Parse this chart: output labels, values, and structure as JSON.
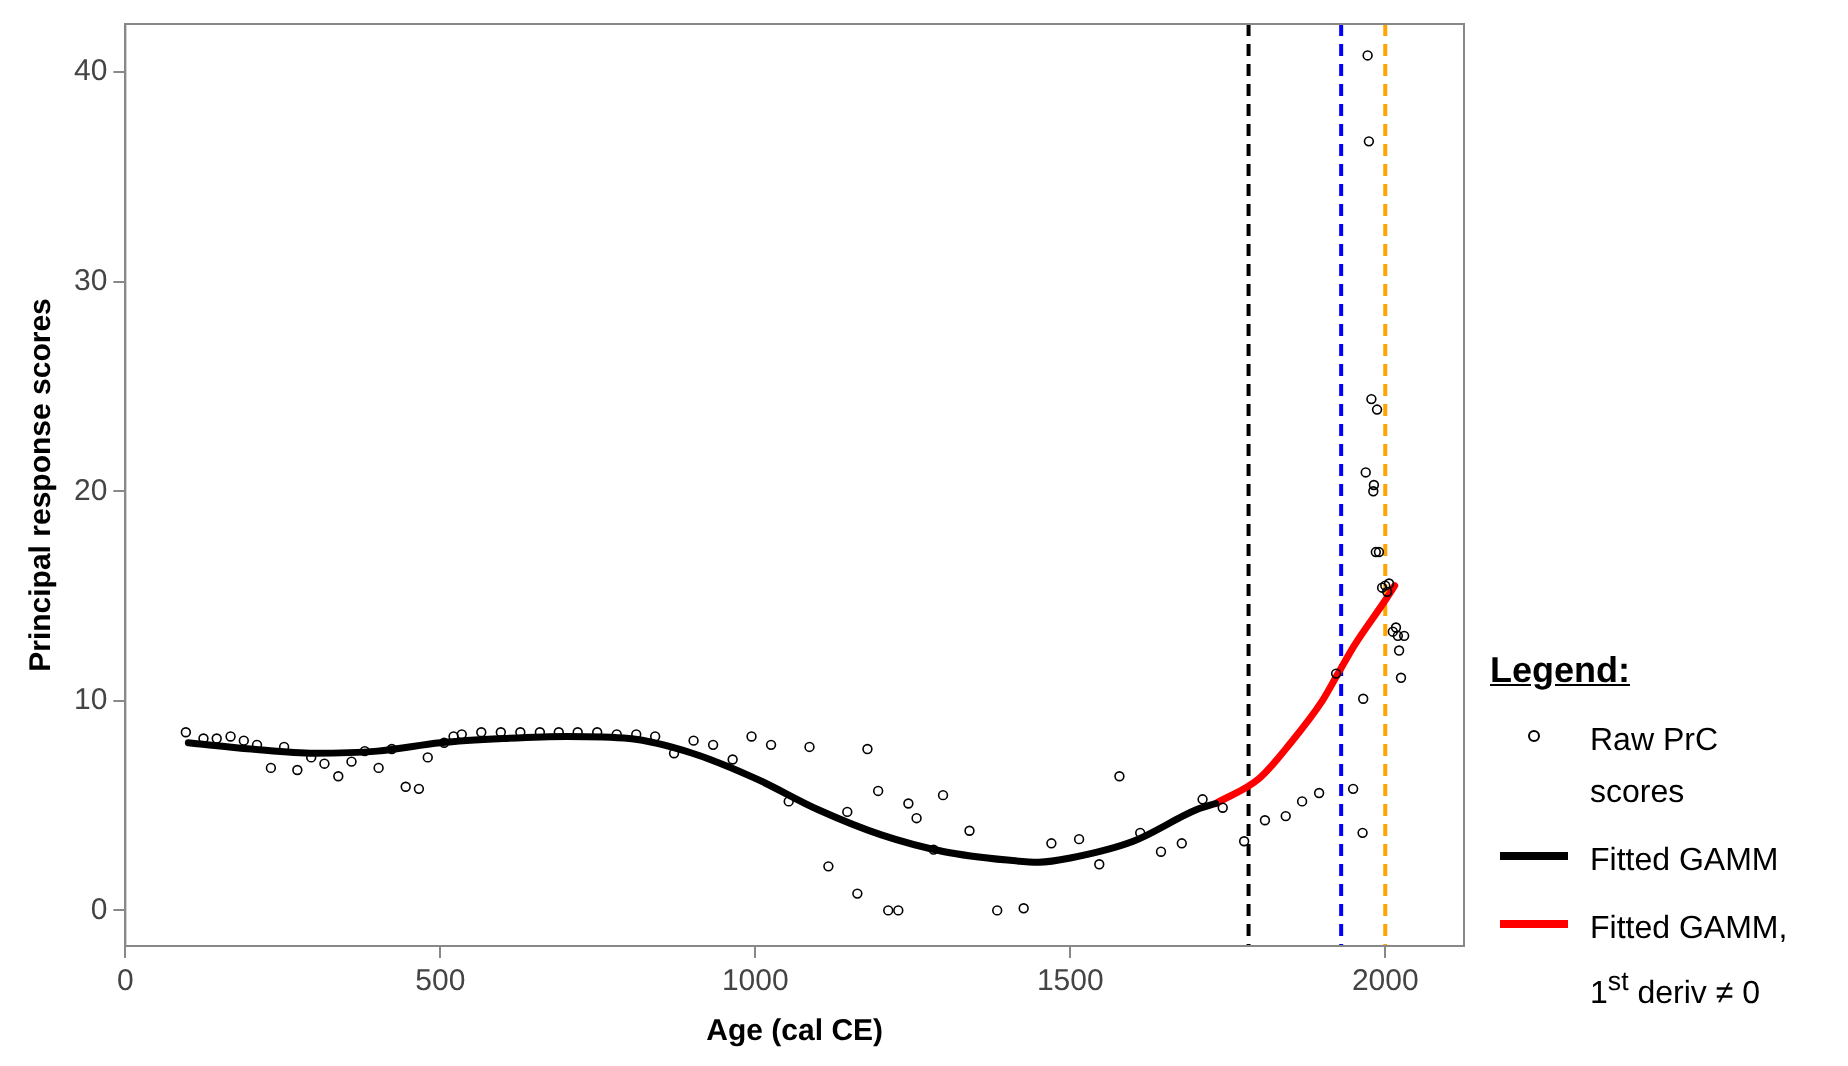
{
  "chart_data": {
    "type": "scatter",
    "xlabel": "Age (cal CE)",
    "ylabel": "Principal response scores",
    "legend_title": "Legend:",
    "legend": "right",
    "grid": false,
    "marker": "circle",
    "xlim": [
      0,
      2125
    ],
    "xticks": [
      0,
      500,
      1000,
      1500,
      2000
    ],
    "ylim": [
      -1.7,
      42.3
    ],
    "yticks": [
      0,
      10,
      20,
      30,
      40
    ],
    "series": [
      {
        "name": "Raw PrC scores",
        "type": "scatter",
        "color": "#000000",
        "x": [
          96,
          124,
          145,
          167,
          188,
          209,
          231,
          252,
          273,
          295,
          316,
          338,
          359,
          380,
          402,
          423,
          445,
          466,
          480,
          506,
          521,
          534,
          565,
          596,
          627,
          658,
          688,
          718,
          749,
          780,
          811,
          841,
          871,
          902,
          933,
          964,
          994,
          1025,
          1053,
          1086,
          1116,
          1146,
          1162,
          1178,
          1195,
          1211,
          1227,
          1243,
          1256,
          1283,
          1298,
          1340,
          1384,
          1426,
          1470,
          1514,
          1546,
          1578,
          1611,
          1644,
          1677,
          1710,
          1742,
          1776,
          1809,
          1842,
          1868,
          1895,
          1922,
          1949,
          1965,
          1964,
          1972,
          1974,
          1978,
          1987,
          1969,
          1982,
          1981,
          1985,
          1990,
          1995,
          2000,
          2006,
          2003,
          2017,
          2012,
          2020,
          2030,
          2022,
          2025
        ],
        "values": [
          8.5,
          8.2,
          8.2,
          8.3,
          8.1,
          7.9,
          6.8,
          7.8,
          6.7,
          7.3,
          7.0,
          6.4,
          7.1,
          7.6,
          6.8,
          7.7,
          5.9,
          5.8,
          7.3,
          8.0,
          8.3,
          8.4,
          8.5,
          8.5,
          8.5,
          8.5,
          8.5,
          8.5,
          8.5,
          8.4,
          8.4,
          8.3,
          7.5,
          8.1,
          7.9,
          7.2,
          8.3,
          7.9,
          5.2,
          7.8,
          2.1,
          4.7,
          0.8,
          7.7,
          5.7,
          0.0,
          0.0,
          5.1,
          4.4,
          2.9,
          5.5,
          3.8,
          0.0,
          0.1,
          3.2,
          3.4,
          2.2,
          6.4,
          3.7,
          2.8,
          3.2,
          5.3,
          4.9,
          3.3,
          4.3,
          4.5,
          5.2,
          5.6,
          11.3,
          5.8,
          10.1,
          3.7,
          40.8,
          36.7,
          24.4,
          23.9,
          20.9,
          20.3,
          20.0,
          17.1,
          17.1,
          15.4,
          15.5,
          15.6,
          15.2,
          13.5,
          13.3,
          13.1,
          13.1,
          12.4,
          11.1
        ]
      },
      {
        "name": "Fitted GAMM",
        "type": "line",
        "color": "#000000",
        "marker": "none",
        "x": [
          100,
          200,
          300,
          400,
          500,
          600,
          700,
          800,
          900,
          1000,
          1100,
          1200,
          1300,
          1400,
          1450,
          1500,
          1600,
          1700,
          1731
        ],
        "values": [
          8.0,
          7.7,
          7.5,
          7.6,
          8.0,
          8.2,
          8.3,
          8.2,
          7.5,
          6.3,
          4.8,
          3.6,
          2.8,
          2.4,
          2.3,
          2.5,
          3.3,
          4.8,
          5.1
        ]
      },
      {
        "name": "Fitted GAMM, 1$^{st}$ deriv ≠ 0",
        "type": "line",
        "color": "#ff0000",
        "marker": "none",
        "x": [
          1731,
          1800,
          1850,
          1900,
          1925,
          1950,
          2000,
          2015
        ],
        "values": [
          5.1,
          6.3,
          8.0,
          10.0,
          11.3,
          12.6,
          14.8,
          15.5
        ]
      }
    ],
    "ref_lines": [
      {
        "axis": "x",
        "value": 1783,
        "color": "#000000",
        "line_style": "dashed"
      },
      {
        "axis": "x",
        "value": 1930,
        "color": "#0000ff",
        "line_style": "dashed"
      },
      {
        "axis": "x",
        "value": 2000,
        "color": "#ffa500",
        "line_style": "dashed"
      }
    ]
  }
}
